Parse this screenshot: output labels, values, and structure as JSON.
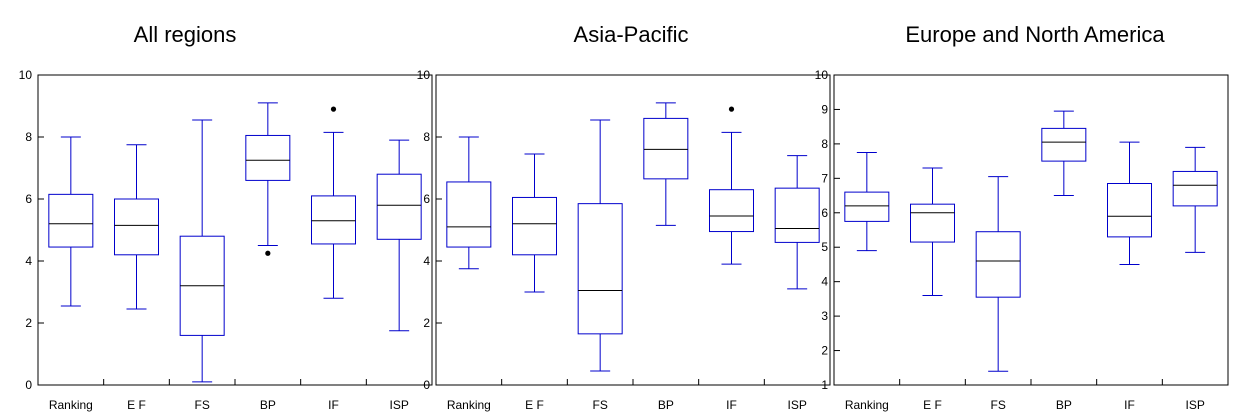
{
  "colors": {
    "box": "#0000cc",
    "median": "#000000",
    "outlier": "#000000",
    "frame": "#000000"
  },
  "chart_data": [
    {
      "type": "box",
      "title": "All regions",
      "categories": [
        "Ranking",
        "E F",
        "FS",
        "BP",
        "IF",
        "ISP"
      ],
      "ylim": [
        0,
        10
      ],
      "yticks": [
        0,
        2,
        4,
        6,
        8,
        10
      ],
      "boxes": [
        {
          "whisker_low": 2.55,
          "q1": 4.45,
          "median": 5.2,
          "q3": 6.15,
          "whisker_high": 8.0,
          "outliers": []
        },
        {
          "whisker_low": 2.45,
          "q1": 4.2,
          "median": 5.15,
          "q3": 6.0,
          "whisker_high": 7.75,
          "outliers": []
        },
        {
          "whisker_low": 0.1,
          "q1": 1.6,
          "median": 3.2,
          "q3": 4.8,
          "whisker_high": 8.55,
          "outliers": []
        },
        {
          "whisker_low": 4.5,
          "q1": 6.6,
          "median": 7.25,
          "q3": 8.05,
          "whisker_high": 9.1,
          "outliers": [
            4.25
          ]
        },
        {
          "whisker_low": 2.8,
          "q1": 4.55,
          "median": 5.3,
          "q3": 6.1,
          "whisker_high": 8.15,
          "outliers": [
            8.9
          ]
        },
        {
          "whisker_low": 1.75,
          "q1": 4.7,
          "median": 5.8,
          "q3": 6.8,
          "whisker_high": 7.9,
          "outliers": []
        }
      ]
    },
    {
      "type": "box",
      "title": "Asia-Pacific",
      "categories": [
        "Ranking",
        "E F",
        "FS",
        "BP",
        "IF",
        "ISP"
      ],
      "ylim": [
        0,
        10
      ],
      "yticks": [
        0,
        2,
        4,
        6,
        8,
        10
      ],
      "boxes": [
        {
          "whisker_low": 3.75,
          "q1": 4.45,
          "median": 5.1,
          "q3": 6.55,
          "whisker_high": 8.0,
          "outliers": []
        },
        {
          "whisker_low": 3.0,
          "q1": 4.2,
          "median": 5.2,
          "q3": 6.05,
          "whisker_high": 7.45,
          "outliers": []
        },
        {
          "whisker_low": 0.45,
          "q1": 1.65,
          "median": 3.05,
          "q3": 5.85,
          "whisker_high": 8.55,
          "outliers": []
        },
        {
          "whisker_low": 5.15,
          "q1": 6.65,
          "median": 7.6,
          "q3": 8.6,
          "whisker_high": 9.1,
          "outliers": []
        },
        {
          "whisker_low": 3.9,
          "q1": 4.95,
          "median": 5.45,
          "q3": 6.3,
          "whisker_high": 8.15,
          "outliers": [
            8.9
          ]
        },
        {
          "whisker_low": 3.1,
          "q1": 4.6,
          "median": 5.05,
          "q3": 6.35,
          "whisker_high": 7.4,
          "outliers": []
        }
      ]
    },
    {
      "type": "box",
      "title": "Europe and North America",
      "categories": [
        "Ranking",
        "E F",
        "FS",
        "BP",
        "IF",
        "ISP"
      ],
      "ylim": [
        1,
        10
      ],
      "yticks": [
        1,
        2,
        3,
        4,
        5,
        6,
        7,
        8,
        9,
        10
      ],
      "boxes": [
        {
          "whisker_low": 4.9,
          "q1": 5.75,
          "median": 6.2,
          "q3": 6.6,
          "whisker_high": 7.75,
          "outliers": []
        },
        {
          "whisker_low": 3.6,
          "q1": 5.15,
          "median": 6.0,
          "q3": 6.25,
          "whisker_high": 7.3,
          "outliers": []
        },
        {
          "whisker_low": 1.4,
          "q1": 3.55,
          "median": 4.6,
          "q3": 5.45,
          "whisker_high": 7.05,
          "outliers": []
        },
        {
          "whisker_low": 6.5,
          "q1": 7.5,
          "median": 8.05,
          "q3": 8.45,
          "whisker_high": 8.95,
          "outliers": []
        },
        {
          "whisker_low": 4.5,
          "q1": 5.3,
          "median": 5.9,
          "q3": 6.85,
          "whisker_high": 8.05,
          "outliers": []
        },
        {
          "whisker_low": 4.85,
          "q1": 6.2,
          "median": 6.8,
          "q3": 7.2,
          "whisker_high": 7.9,
          "outliers": []
        }
      ]
    }
  ]
}
